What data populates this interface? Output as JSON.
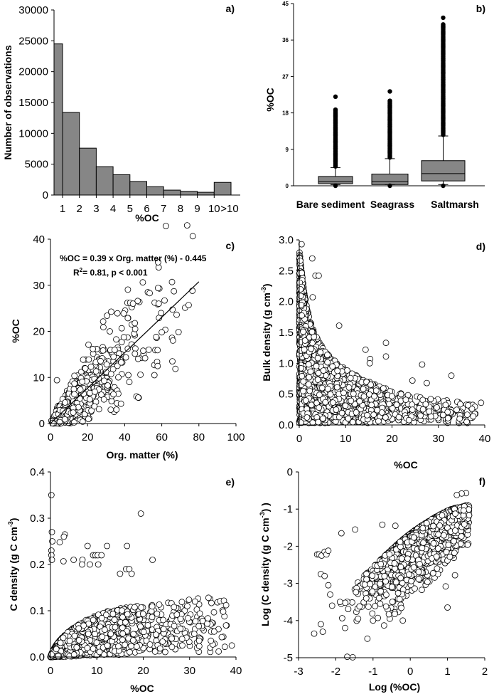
{
  "chart_data": [
    {
      "id": "a",
      "type": "bar",
      "panel_label": "a)",
      "xlabel": "%OC",
      "ylabel": "Number of observations",
      "categories": [
        "1",
        "2",
        "3",
        "4",
        "5",
        "6",
        "7",
        "8",
        "9",
        "10",
        ">10"
      ],
      "values": [
        24500,
        13400,
        7600,
        4600,
        3300,
        2200,
        1350,
        800,
        600,
        450,
        2050
      ],
      "ylim": [
        0,
        30000
      ],
      "yticks": [
        "0",
        "5000",
        "10000",
        "15000",
        "20000",
        "25000",
        "30000"
      ],
      "bar_color": "#868686"
    },
    {
      "id": "b",
      "type": "box",
      "panel_label": "b)",
      "xlabel": "",
      "ylabel": "%OC",
      "ylim": [
        0,
        45
      ],
      "yticks": [
        "0",
        "9",
        "18",
        "27",
        "36",
        "45"
      ],
      "box_color": "#868686",
      "groups": [
        {
          "name": "Bare sediment",
          "whisker_low": 0.3,
          "q1": 0.5,
          "median": 1.0,
          "q3": 2.3,
          "whisker_high": 4.5,
          "outlier_max": 22,
          "outlier_dense_to": 19
        },
        {
          "name": "Seagrass",
          "whisker_low": 0.3,
          "q1": 0.3,
          "median": 1.0,
          "q3": 2.9,
          "whisker_high": 6.7,
          "outlier_max": 23.3,
          "outlier_dense_to": 21
        },
        {
          "name": "Saltmarsh",
          "whisker_low": 0.3,
          "q1": 1.2,
          "median": 3.0,
          "q3": 6.2,
          "whisker_high": 12.3,
          "outlier_max": 41.5,
          "outlier_dense_to": 40
        }
      ]
    },
    {
      "id": "c",
      "type": "scatter",
      "panel_label": "c)",
      "xlabel": "Org. matter (%)",
      "ylabel": "%OC",
      "xlim": [
        0,
        100
      ],
      "ylim": [
        0,
        40
      ],
      "xticks": [
        "0",
        "20",
        "40",
        "60",
        "80",
        "100"
      ],
      "yticks": [
        "0",
        "10",
        "20",
        "30",
        "40"
      ],
      "equation": "%OC  = 0.39 x Org. matter (%) - 0.445",
      "r2_text": "= 0.81, p < 0.001",
      "r2_label": "R",
      "r2_sup": "2",
      "fit": {
        "slope": 0.39,
        "intercept": -0.445,
        "x_range": [
          0,
          80
        ]
      },
      "cloud": {
        "seed": 11,
        "n": 700,
        "log10_mean": 1.05,
        "log10_sd": 0.38,
        "x_max": 78,
        "noise_rel": 0.13,
        "noise_abs": 0.6
      },
      "points": [
        [
          65.5,
          30.7
        ],
        [
          76.5,
          28.8
        ],
        [
          58,
          29.4
        ],
        [
          52.5,
          28.5
        ],
        [
          53.5,
          28.3
        ],
        [
          74.5,
          25.7
        ],
        [
          30.5,
          23.4
        ],
        [
          61.5,
          26.7
        ],
        [
          68,
          23.6
        ],
        [
          47,
          26.6
        ],
        [
          41.5,
          26.2
        ],
        [
          43,
          26.2
        ],
        [
          44.5,
          26.0
        ],
        [
          65.5,
          18.6
        ],
        [
          66,
          18
        ],
        [
          56,
          10.5
        ],
        [
          48.5,
          10.6
        ],
        [
          38,
          4.3
        ],
        [
          32.5,
          3.0
        ],
        [
          28.5,
          20.9
        ],
        [
          32,
          20
        ],
        [
          20.5,
          17.1
        ],
        [
          3.5,
          9.4
        ],
        [
          34,
          14.5
        ],
        [
          42,
          10.5
        ],
        [
          60,
          19.8
        ],
        [
          57,
          18.8
        ],
        [
          50,
          15.8
        ],
        [
          51,
          14.2
        ],
        [
          53,
          16
        ]
      ]
    },
    {
      "id": "d",
      "type": "scatter",
      "panel_label": "d)",
      "xlabel": "%OC",
      "ylabel": "Bulk density (g cm",
      "ylabel_sup": "-3",
      "ylabel_end": ")",
      "xlim": [
        0,
        40
      ],
      "ylim": [
        0,
        3.0
      ],
      "xticks": [
        "0",
        "10",
        "20",
        "30",
        "40"
      ],
      "yticks": [
        "0.0",
        "0.5",
        "1.0",
        "1.5",
        "2.0",
        "2.5",
        "3.0"
      ],
      "points": [
        [
          0.5,
          2.93
        ],
        [
          2.8,
          2.7
        ],
        [
          3.5,
          2.42
        ],
        [
          4.2,
          2.42
        ],
        [
          2.9,
          2.07
        ],
        [
          8.6,
          1.61
        ],
        [
          18.7,
          1.33
        ],
        [
          18.7,
          1.11
        ],
        [
          26.5,
          0.98
        ],
        [
          32.8,
          0.8
        ],
        [
          39.2,
          0.36
        ],
        [
          15.3,
          1.07
        ],
        [
          15.2,
          1.0
        ],
        [
          14.3,
          1.22
        ],
        [
          24.4,
          0.72
        ],
        [
          27.5,
          0.68
        ],
        [
          36.4,
          0.32
        ],
        [
          37.5,
          0.14
        ],
        [
          36.1,
          0.05
        ]
      ]
    },
    {
      "id": "e",
      "type": "scatter",
      "panel_label": "e)",
      "xlabel": "%OC",
      "ylabel": "C density (g C cm",
      "ylabel_sup": "-3",
      "ylabel_end": ")",
      "xlim": [
        0,
        40
      ],
      "ylim": [
        0,
        0.4
      ],
      "xticks": [
        "0",
        "10",
        "20",
        "30",
        "40"
      ],
      "yticks": [
        "0.0",
        "0.1",
        "0.2",
        "0.3",
        "0.4"
      ],
      "points": [
        [
          0.2,
          0.35
        ],
        [
          19.5,
          0.31
        ],
        [
          0.3,
          0.27
        ],
        [
          3.1,
          0.265
        ],
        [
          2.9,
          0.26
        ],
        [
          0.4,
          0.25
        ],
        [
          2,
          0.248
        ],
        [
          8,
          0.24
        ],
        [
          12.2,
          0.24
        ],
        [
          16.5,
          0.24
        ],
        [
          22,
          0.21
        ],
        [
          0.2,
          0.23
        ],
        [
          0.2,
          0.22
        ],
        [
          0.3,
          0.21
        ],
        [
          2.8,
          0.207
        ],
        [
          5,
          0.21
        ],
        [
          6.9,
          0.21
        ],
        [
          9.2,
          0.22
        ],
        [
          9.7,
          0.22
        ],
        [
          10.2,
          0.22
        ],
        [
          11,
          0.22
        ],
        [
          6.8,
          0.2
        ],
        [
          8.5,
          0.2
        ],
        [
          10.3,
          0.2
        ],
        [
          16.3,
          0.19
        ],
        [
          17,
          0.19
        ],
        [
          15,
          0.18
        ],
        [
          17.5,
          0.18
        ],
        [
          29.5,
          0.11
        ],
        [
          32.2,
          0.094
        ],
        [
          33.8,
          0.072
        ],
        [
          35.3,
          0.055
        ],
        [
          39.1,
          0.025
        ],
        [
          37.6,
          0.022
        ]
      ]
    },
    {
      "id": "f",
      "type": "scatter",
      "panel_label": "f)",
      "xlabel": "Log (%OC)",
      "ylabel": "Log (C density (g C cm",
      "ylabel_sup": "-3",
      "ylabel_end": ") )",
      "xlim": [
        -3,
        2
      ],
      "ylim": [
        -5,
        0
      ],
      "xticks": [
        "-3",
        "-2",
        "-1",
        "0",
        "1",
        "2"
      ],
      "yticks": [
        "-5",
        "-4",
        "-3",
        "-2",
        "-1",
        "0"
      ],
      "points": [
        [
          -2.58,
          -4.35
        ],
        [
          -2.5,
          -2.22
        ],
        [
          -2.45,
          -2.22
        ],
        [
          -2.38,
          -2.25
        ],
        [
          -2.3,
          -2.15
        ],
        [
          -2.25,
          -2.22
        ],
        [
          -2.2,
          -2.12
        ],
        [
          -2.4,
          -2.75
        ],
        [
          -2.3,
          -2.8
        ],
        [
          -2.2,
          -3.05
        ],
        [
          -2.15,
          -3.3
        ],
        [
          -2.1,
          -3.6
        ],
        [
          -1.75,
          -4.2
        ],
        [
          -1.4,
          -3.95
        ],
        [
          -1,
          -4.0
        ],
        [
          -0.2,
          -4.0
        ],
        [
          1,
          -3.65
        ],
        [
          0.95,
          -3.08
        ],
        [
          1.2,
          -2.78
        ],
        [
          -1.85,
          -1.65
        ],
        [
          -1.48,
          -1.55
        ],
        [
          -0.75,
          -1.42
        ],
        [
          -0.4,
          -1.45
        ],
        [
          1.5,
          -0.57
        ],
        [
          1.38,
          -0.58
        ],
        [
          1.25,
          -0.62
        ],
        [
          -0.65,
          -3.62
        ],
        [
          -2.35,
          -4.3
        ],
        [
          -2.4,
          -4.1
        ]
      ]
    }
  ],
  "shared_sample": {
    "seed": 7,
    "n": 2600,
    "log10_oc_mean": 0.35,
    "log10_oc_sd": 0.7,
    "log10_oc_min": -2.6,
    "log10_oc_max": 1.6,
    "oc_max": 38
  }
}
